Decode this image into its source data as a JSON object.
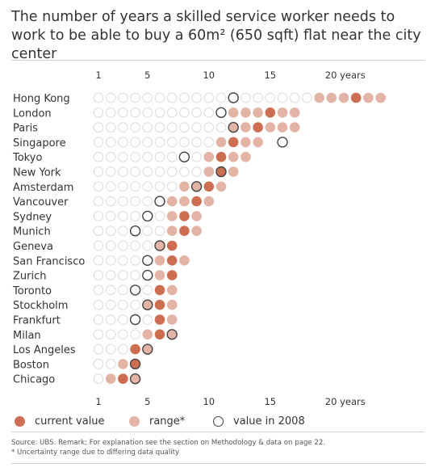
{
  "title": "The number of years a skilled service worker needs to work to be able to buy a 60m² (650 sqft) flat near the city center",
  "chart_data": {
    "type": "dot",
    "x_ticks": [
      1,
      5,
      10,
      15,
      20
    ],
    "x_tick_labels_top": [
      "1",
      "5",
      "10",
      "15",
      "20 years"
    ],
    "x_tick_labels_bottom": [
      "1",
      "5",
      "10",
      "15",
      "20 years"
    ],
    "xlim": [
      1,
      24
    ],
    "cities": [
      {
        "name": "Hong Kong",
        "range": [
          19,
          24
        ],
        "current": 22,
        "value_2008": 12
      },
      {
        "name": "London",
        "range": [
          12,
          17
        ],
        "current": 15,
        "value_2008": 11
      },
      {
        "name": "Paris",
        "range": [
          12,
          17
        ],
        "current": 14,
        "value_2008": 12
      },
      {
        "name": "Singapore",
        "range": [
          11,
          14
        ],
        "current": 12,
        "value_2008": 16
      },
      {
        "name": "Tokyo",
        "range": [
          10,
          13
        ],
        "current": 11,
        "value_2008": 8
      },
      {
        "name": "New York",
        "range": [
          10,
          12
        ],
        "current": 11,
        "value_2008": 11
      },
      {
        "name": "Amsterdam",
        "range": [
          8,
          11
        ],
        "current": 10,
        "value_2008": 9
      },
      {
        "name": "Vancouver",
        "range": [
          7,
          10
        ],
        "current": 9,
        "value_2008": 6
      },
      {
        "name": "Sydney",
        "range": [
          7,
          9
        ],
        "current": 8,
        "value_2008": 5
      },
      {
        "name": "Munich",
        "range": [
          7,
          9
        ],
        "current": 8,
        "value_2008": 4
      },
      {
        "name": "Geneva",
        "range": [
          6,
          7
        ],
        "current": 7,
        "value_2008": 6
      },
      {
        "name": "San Francisco",
        "range": [
          6,
          8
        ],
        "current": 7,
        "value_2008": 5
      },
      {
        "name": "Zurich",
        "range": [
          6,
          7
        ],
        "current": 7,
        "value_2008": 5
      },
      {
        "name": "Toronto",
        "range": [
          6,
          7
        ],
        "current": 6,
        "value_2008": 4
      },
      {
        "name": "Stockholm",
        "range": [
          5,
          7
        ],
        "current": 6,
        "value_2008": 5
      },
      {
        "name": "Frankfurt",
        "range": [
          6,
          7
        ],
        "current": 6,
        "value_2008": 4
      },
      {
        "name": "Milan",
        "range": [
          5,
          7
        ],
        "current": 6,
        "value_2008": 7
      },
      {
        "name": "Los Angeles",
        "range": [
          4,
          5
        ],
        "current": 4,
        "value_2008": 5
      },
      {
        "name": "Boston",
        "range": [
          3,
          4
        ],
        "current": 4,
        "value_2008": 4
      },
      {
        "name": "Chicago",
        "range": [
          2,
          4
        ],
        "current": 3,
        "value_2008": 4
      }
    ],
    "legend": [
      "current value",
      "range*",
      "value in 2008"
    ],
    "colors": {
      "current": "#cd6e53",
      "range": "#e3b4a6",
      "empty_stroke": "#dedede",
      "ring": "#444444"
    }
  },
  "source_lines": [
    "Source: UBS. Remark: For explanation see the section on Methodology & data on page 22.",
    "* Uncertainty range due to differing data quality"
  ]
}
